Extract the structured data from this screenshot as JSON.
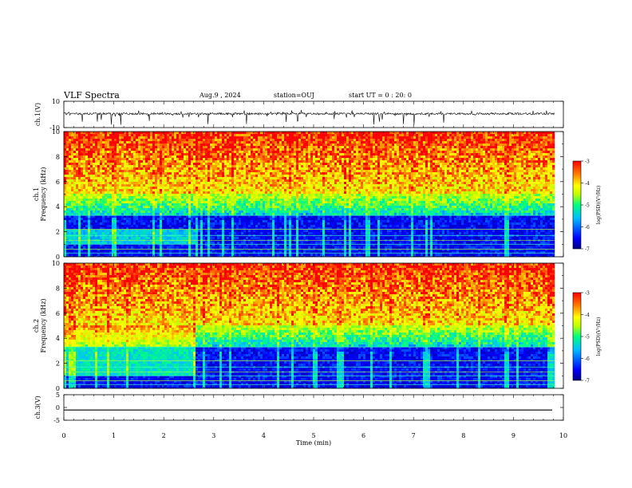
{
  "header": {
    "title": "VLF Spectra",
    "date": "Aug.9 , 2024",
    "station": "station=OUJ",
    "start": "start UT = 0 : 20: 0"
  },
  "chart_data": [
    {
      "type": "line",
      "ylabel": "ch.1(V)",
      "ylim": [
        -10,
        10
      ],
      "yticks": [
        "10",
        "-10"
      ],
      "xlim": [
        0,
        10
      ],
      "series": [
        {
          "values_description_free": true
        }
      ],
      "baseline": 0.5
    },
    {
      "type": "heatmap",
      "ylabel_top": "ch.1",
      "ylabel": "Frequency (kHz)",
      "ylim": [
        0,
        10
      ],
      "yticks": [
        "0",
        "2",
        "4",
        "6",
        "8",
        "10"
      ],
      "xlim": [
        0,
        10
      ],
      "colorbar": {
        "label": "log(PSD)(V²/Hz)",
        "range": [
          -7,
          -3
        ],
        "ticks": [
          "-3",
          "-4",
          "-5",
          "-6",
          "-7"
        ]
      }
    },
    {
      "type": "heatmap",
      "ylabel_top": "ch.2",
      "ylabel": "Frequency (kHz)",
      "ylim": [
        0,
        10
      ],
      "yticks": [
        "0",
        "2",
        "4",
        "6",
        "8",
        "10"
      ],
      "xlim": [
        0,
        10
      ],
      "colorbar": {
        "label": "log(PSD)(V²/Hz)",
        "range": [
          -7,
          -3
        ],
        "ticks": [
          "-3",
          "-4",
          "-5",
          "-6",
          "-7"
        ]
      }
    },
    {
      "type": "line",
      "ylabel": "ch.3(V)",
      "ylim": [
        -5,
        5
      ],
      "yticks": [
        "5",
        "0",
        "-5"
      ],
      "xlim": [
        0,
        10
      ],
      "series": [
        {
          "values": [
            -1,
            -1
          ]
        }
      ]
    }
  ],
  "xaxis": {
    "label": "Time (min)",
    "ticks": [
      "0",
      "1",
      "2",
      "3",
      "4",
      "5",
      "6",
      "7",
      "8",
      "9",
      "10"
    ]
  },
  "colors": {
    "jet": [
      "#00007f",
      "#0000ff",
      "#00bfff",
      "#00ff7f",
      "#bfff00",
      "#ffff00",
      "#ff7f00",
      "#ff0000"
    ]
  }
}
